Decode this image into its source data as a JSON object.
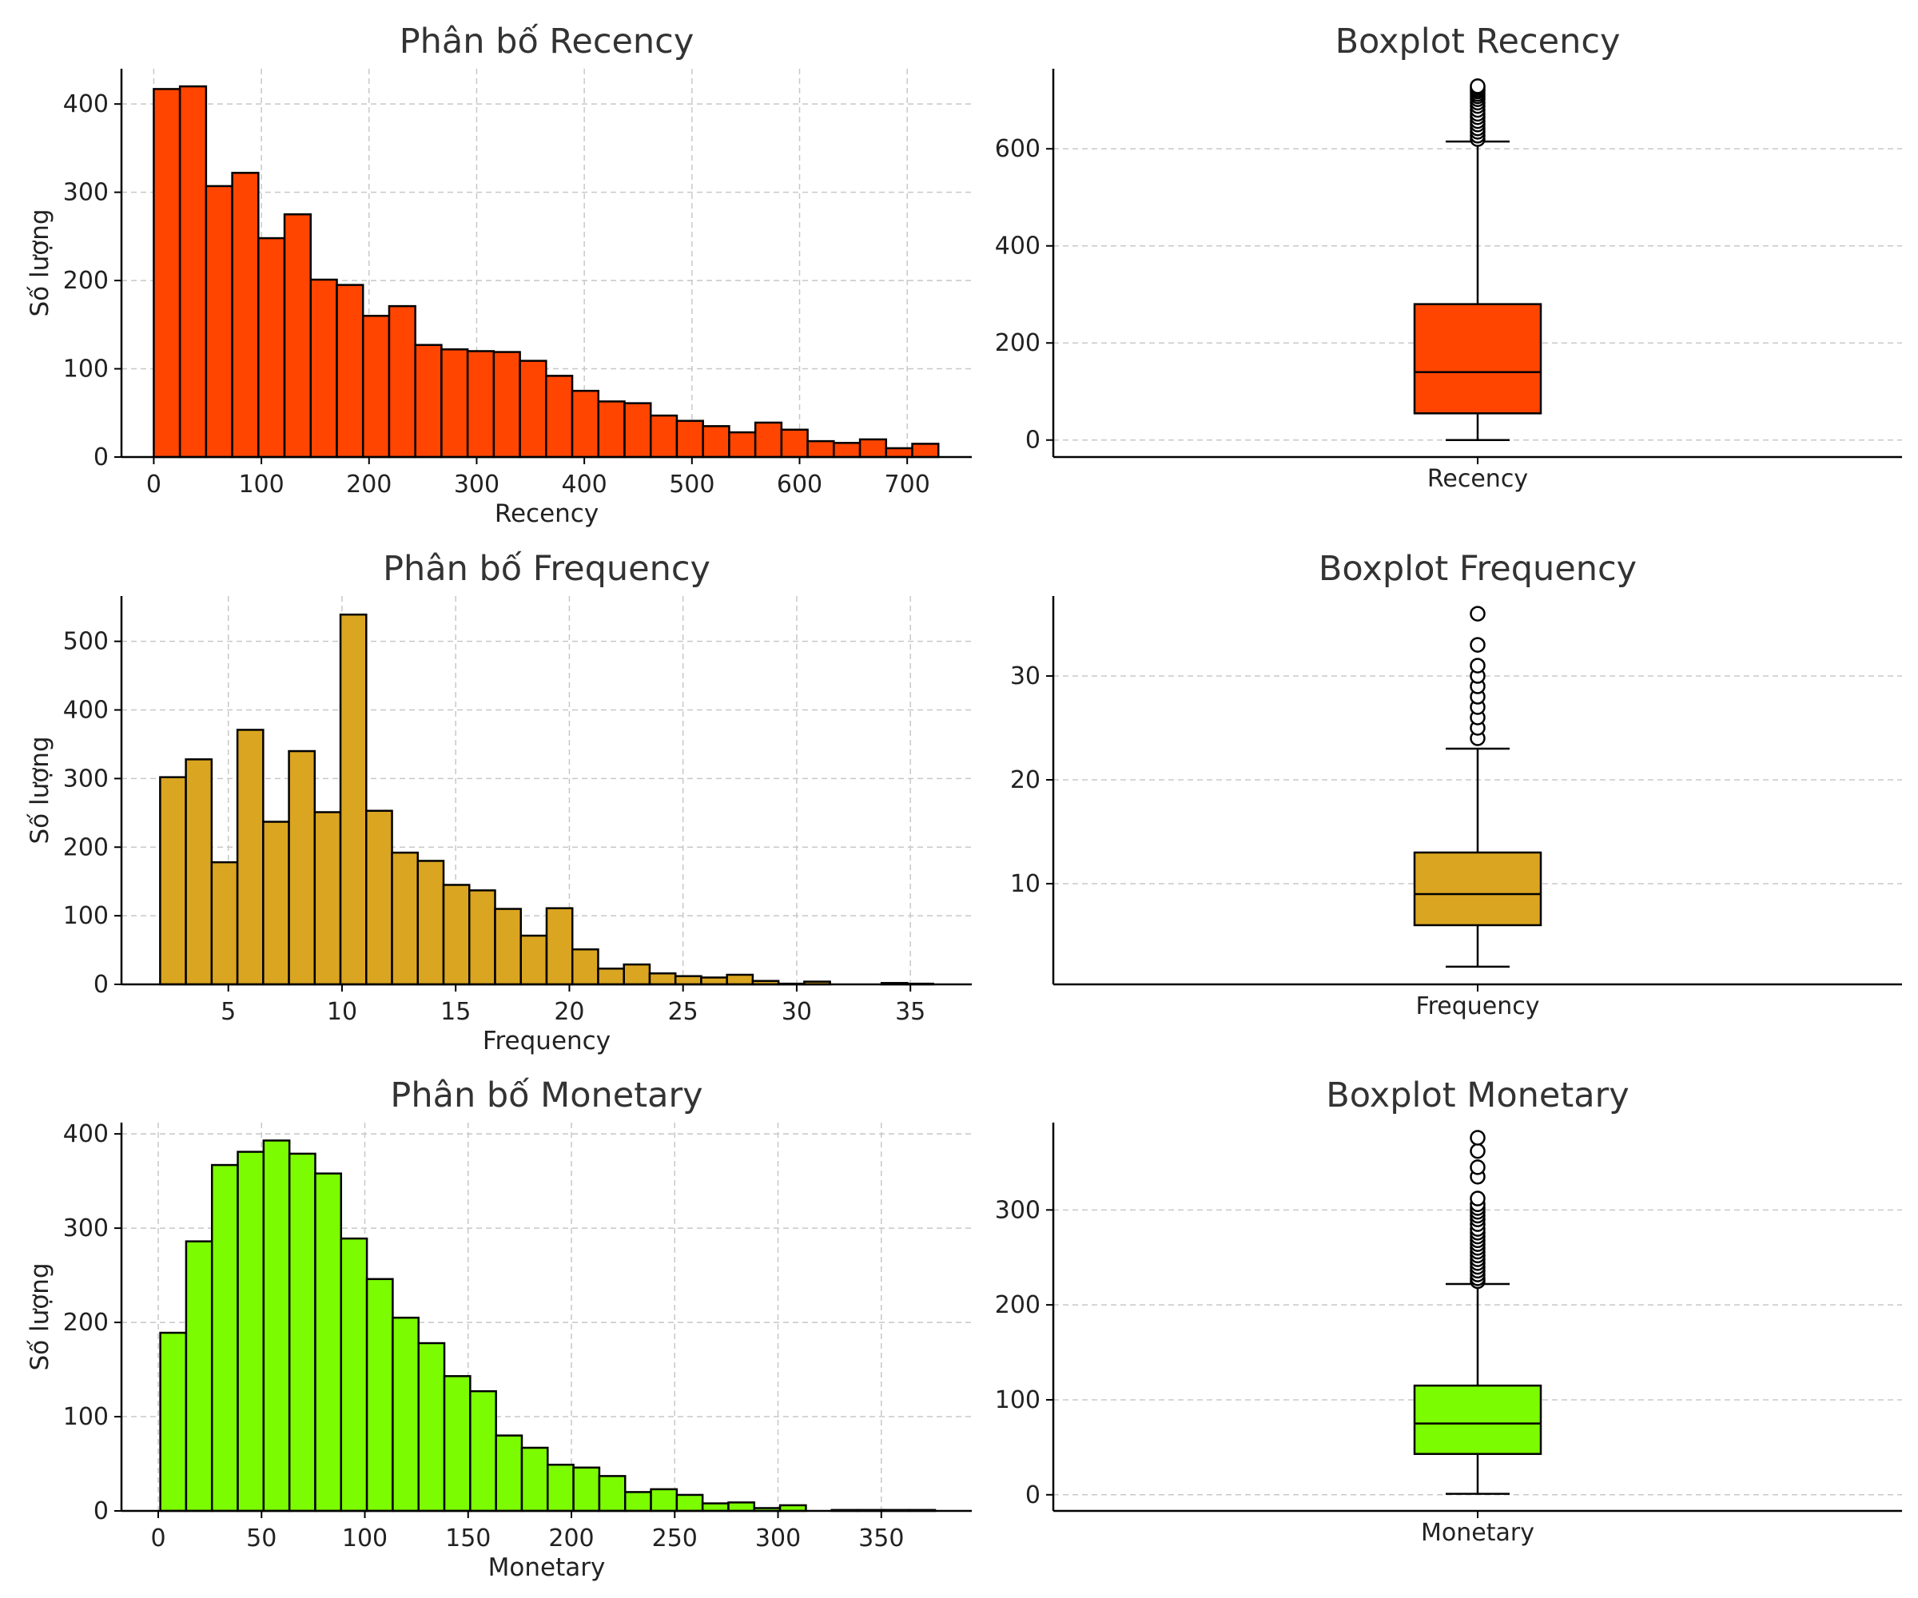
{
  "chart_data": [
    {
      "type": "bar",
      "title": "Phân bố Recency",
      "xlabel": "Recency",
      "ylabel": "Số lượng",
      "color": "#ff4500",
      "bin_start": 0,
      "bin_width": 24.3,
      "counts": [
        417,
        420,
        307,
        322,
        248,
        275,
        201,
        195,
        160,
        171,
        127,
        122,
        120,
        119,
        109,
        92,
        75,
        63,
        61,
        47,
        41,
        35,
        28,
        39,
        31,
        18,
        16,
        20,
        10,
        15
      ],
      "xlim": [
        -30,
        760
      ],
      "ylim": [
        0,
        440
      ],
      "xticks": [
        0,
        100,
        200,
        300,
        400,
        500,
        600,
        700
      ],
      "yticks": [
        0,
        100,
        200,
        300,
        400
      ],
      "grid": true
    },
    {
      "type": "box",
      "title": "Boxplot Recency",
      "category": "Recency",
      "color": "#ff4500",
      "whisker_low": 0,
      "q1": 55,
      "median": 140,
      "q3": 280,
      "whisker_high": 615,
      "fliers": [
        620,
        627,
        635,
        642,
        650,
        657,
        665,
        672,
        680,
        688,
        695,
        702,
        708,
        713,
        718,
        722,
        726,
        729
      ],
      "ylim": [
        -35,
        765
      ],
      "yticks": [
        0,
        200,
        400,
        600
      ],
      "grid": true
    },
    {
      "type": "bar",
      "title": "Phân bố Frequency",
      "xlabel": "Frequency",
      "ylabel": "Số lượng",
      "color": "#daa520",
      "bin_start": 2,
      "bin_width": 1.1333,
      "counts": [
        302,
        328,
        178,
        371,
        237,
        340,
        251,
        539,
        253,
        192,
        180,
        145,
        137,
        110,
        71,
        111,
        51,
        23,
        29,
        16,
        12,
        10,
        14,
        5,
        1,
        4,
        0,
        0,
        2,
        1
      ],
      "xlim": [
        0.3,
        37.7
      ],
      "ylim": [
        0,
        566
      ],
      "xticks": [
        5,
        10,
        15,
        20,
        25,
        30,
        35
      ],
      "yticks": [
        0,
        100,
        200,
        300,
        400,
        500
      ],
      "grid": true
    },
    {
      "type": "box",
      "title": "Boxplot Frequency",
      "category": "Frequency",
      "color": "#daa520",
      "whisker_low": 2,
      "q1": 6,
      "median": 9,
      "q3": 13,
      "whisker_high": 23,
      "fliers": [
        24,
        25,
        26,
        27,
        28,
        29,
        30,
        31,
        33,
        36
      ],
      "ylim": [
        0.3,
        37.7
      ],
      "yticks": [
        10,
        20,
        30
      ],
      "grid": true
    },
    {
      "type": "bar",
      "title": "Phân bố Monetary",
      "xlabel": "Monetary",
      "ylabel": "Số lượng",
      "color": "#7cfc00",
      "bin_start": 1,
      "bin_width": 12.5,
      "counts": [
        189,
        286,
        367,
        381,
        393,
        379,
        358,
        289,
        246,
        205,
        178,
        143,
        127,
        80,
        67,
        49,
        46,
        37,
        20,
        23,
        17,
        8,
        9,
        3,
        6,
        0,
        1,
        1,
        1,
        1
      ],
      "xlim": [
        -17.8,
        393.8
      ],
      "ylim": [
        0,
        412
      ],
      "xticks": [
        0,
        50,
        100,
        150,
        200,
        250,
        300,
        350
      ],
      "yticks": [
        0,
        100,
        200,
        300,
        400
      ],
      "grid": true
    },
    {
      "type": "box",
      "title": "Boxplot Monetary",
      "category": "Monetary",
      "color": "#7cfc00",
      "whisker_low": 1,
      "q1": 43,
      "median": 75,
      "q3": 115,
      "whisker_high": 222,
      "fliers": [
        225,
        228,
        232,
        236,
        240,
        244,
        248,
        252,
        256,
        260,
        264,
        268,
        272,
        276,
        280,
        285,
        290,
        294,
        298,
        302,
        306,
        312,
        335,
        345,
        362,
        376
      ],
      "ylim": [
        -17,
        392
      ],
      "yticks": [
        0,
        100,
        200,
        300
      ],
      "grid": true
    }
  ]
}
